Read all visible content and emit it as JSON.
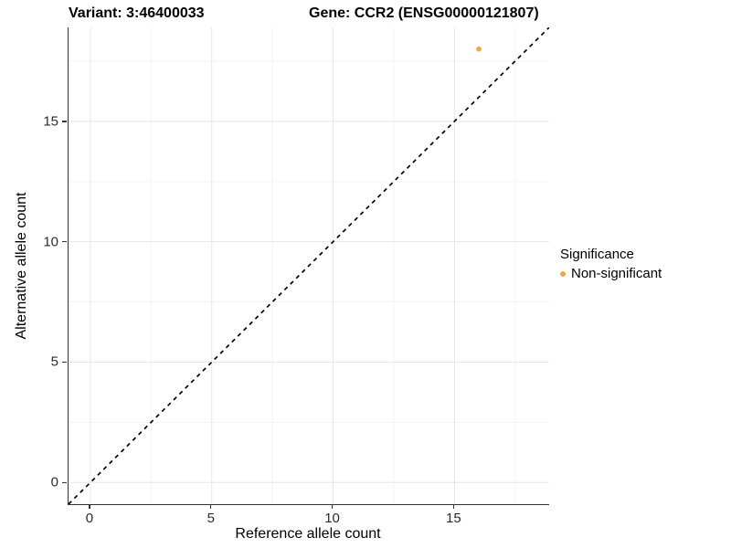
{
  "titles": {
    "variant": "Variant: 3:46400033",
    "gene": "Gene: CCR2 (ENSG00000121807)"
  },
  "axes": {
    "x_label": "Reference allele count",
    "y_label": "Alternative allele count"
  },
  "legend": {
    "title": "Significance",
    "items": [
      {
        "label": "Non-significant",
        "color": "#F9A43C"
      }
    ]
  },
  "colors": {
    "point_orange": "#F9A43C",
    "axis_line": "#333333",
    "grid_major": "#e7e7e7",
    "grid_minor": "#f3f3f3",
    "reference_line": "#000000"
  },
  "chart_data": {
    "type": "scatter",
    "title_left": "Variant: 3:46400033",
    "title_right": "Gene: CCR2 (ENSG00000121807)",
    "xlabel": "Reference allele count",
    "ylabel": "Alternative allele count",
    "xlim": [
      -0.9,
      18.9
    ],
    "ylim": [
      -0.9,
      18.9
    ],
    "x_ticks": [
      0,
      5,
      10,
      15
    ],
    "y_ticks": [
      0,
      5,
      10,
      15
    ],
    "x_minor_ticks": [
      2.5,
      7.5,
      12.5,
      17.5
    ],
    "y_minor_ticks": [
      2.5,
      7.5,
      12.5,
      17.5
    ],
    "grid": "major+minor",
    "legend_position": "right",
    "legend_title": "Significance",
    "series": [
      {
        "name": "Non-significant",
        "color": "#F9A43C",
        "point_radius": 2.8,
        "points": [
          [
            16,
            18
          ]
        ]
      }
    ],
    "reference_line": {
      "equation": "y=x",
      "style": "dashed",
      "color": "#000000"
    }
  }
}
